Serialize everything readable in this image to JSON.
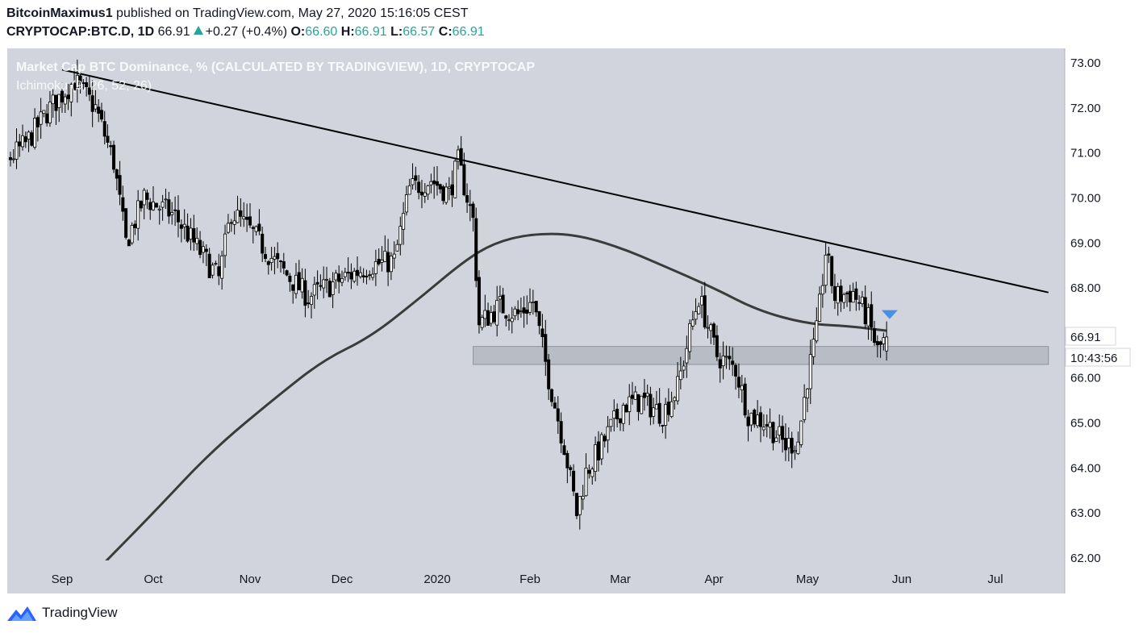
{
  "header": {
    "author": "BitcoinMaximus1",
    "published": "published on TradingView.com, May 27, 2020 15:16:05 CEST",
    "symbol": "CRYPTOCAP:BTC.D, 1D",
    "last": "66.91",
    "change": "+0.27 (+0.4%)",
    "o_label": "O:",
    "o_value": "66.60",
    "h_label": "H:",
    "h_value": "66.91",
    "l_label": "L:",
    "l_value": "66.57",
    "c_label": "C:",
    "c_value": "66.91"
  },
  "chart_title": "Market Cap BTC Dominance, % (CALCULATED BY TRADINGVIEW), 1D, CRYPTOCAP",
  "indicator_label": "Ichimoku (9, 26, 52, 26)",
  "price_tag": "66.91",
  "countdown_tag": "10:43:56",
  "footer": {
    "brand": "TradingView"
  },
  "colors": {
    "background": "#d1d4dc",
    "candle": "#000000",
    "trendline": "#000000",
    "ichimoku": "#3b3b3b",
    "support_zone": "#b2b5be",
    "arrow": "#4a90e2",
    "up": "#26a69a"
  },
  "icons": [
    "tradingview-logo-icon",
    "triangle-up-icon",
    "arrow-down-icon"
  ],
  "chart_data": {
    "type": "candlestick",
    "ylim": [
      62,
      73
    ],
    "y_ticks": [
      "62.00",
      "63.00",
      "64.00",
      "65.00",
      "66.00",
      "67.00",
      "68.00",
      "69.00",
      "70.00",
      "71.00",
      "72.00",
      "73.00"
    ],
    "x_ticks": [
      "Sep",
      "Oct",
      "Nov",
      "Dec",
      "2020",
      "Feb",
      "Mar",
      "Apr",
      "May",
      "Jun",
      "Jul"
    ],
    "x_tick_dates": [
      "2019-09-01",
      "2019-10-01",
      "2019-11-01",
      "2019-12-01",
      "2020-01-01",
      "2020-02-01",
      "2020-03-01",
      "2020-04-01",
      "2020-05-01",
      "2020-06-01",
      "2020-07-01"
    ],
    "close_path": [
      [
        "2019-08-01",
        70.5
      ],
      [
        "2019-08-10",
        70.6
      ],
      [
        "2019-08-20",
        71.2
      ],
      [
        "2019-08-28",
        72.0
      ],
      [
        "2019-09-05",
        72.6
      ],
      [
        "2019-09-12",
        72.0
      ],
      [
        "2019-09-18",
        70.8
      ],
      [
        "2019-09-22",
        69.0
      ],
      [
        "2019-09-28",
        70.0
      ],
      [
        "2019-10-08",
        69.6
      ],
      [
        "2019-10-15",
        68.9
      ],
      [
        "2019-10-22",
        68.2
      ],
      [
        "2019-10-26",
        69.7
      ],
      [
        "2019-11-02",
        69.2
      ],
      [
        "2019-11-10",
        68.5
      ],
      [
        "2019-11-20",
        67.8
      ],
      [
        "2019-12-01",
        68.2
      ],
      [
        "2019-12-10",
        68.5
      ],
      [
        "2019-12-18",
        68.6
      ],
      [
        "2019-12-23",
        70.2
      ],
      [
        "2019-12-30",
        70.4
      ],
      [
        "2020-01-05",
        70.1
      ],
      [
        "2020-01-08",
        70.8
      ],
      [
        "2020-01-13",
        69.5
      ],
      [
        "2020-01-15",
        67.2
      ],
      [
        "2020-01-22",
        67.6
      ],
      [
        "2020-01-28",
        67.4
      ],
      [
        "2020-02-02",
        67.7
      ],
      [
        "2020-02-07",
        66.0
      ],
      [
        "2020-02-12",
        64.5
      ],
      [
        "2020-02-16",
        63.0
      ],
      [
        "2020-02-19",
        63.9
      ],
      [
        "2020-02-24",
        64.5
      ],
      [
        "2020-03-02",
        65.4
      ],
      [
        "2020-03-08",
        65.5
      ],
      [
        "2020-03-15",
        65.2
      ],
      [
        "2020-03-20",
        65.8
      ],
      [
        "2020-03-24",
        67.0
      ],
      [
        "2020-03-27",
        67.8
      ],
      [
        "2020-04-02",
        66.5
      ],
      [
        "2020-04-08",
        66.2
      ],
      [
        "2020-04-12",
        65.2
      ],
      [
        "2020-04-18",
        65.0
      ],
      [
        "2020-04-24",
        64.5
      ],
      [
        "2020-04-28",
        64.6
      ],
      [
        "2020-05-01",
        66.0
      ],
      [
        "2020-05-04",
        67.0
      ],
      [
        "2020-05-07",
        68.8
      ],
      [
        "2020-05-10",
        67.8
      ],
      [
        "2020-05-16",
        67.9
      ],
      [
        "2020-05-21",
        67.3
      ],
      [
        "2020-05-24",
        66.6
      ],
      [
        "2020-05-27",
        66.91
      ]
    ],
    "ohlc_last": {
      "date": "2020-05-27",
      "open": 66.6,
      "high": 66.91,
      "low": 66.57,
      "close": 66.91
    },
    "ichimoku_line": [
      [
        "2019-09-15",
        61.9
      ],
      [
        "2019-10-01",
        63.0
      ],
      [
        "2019-10-20",
        64.4
      ],
      [
        "2019-11-10",
        65.6
      ],
      [
        "2019-11-25",
        66.4
      ],
      [
        "2019-12-10",
        66.9
      ],
      [
        "2019-12-25",
        67.7
      ],
      [
        "2020-01-10",
        68.6
      ],
      [
        "2020-01-20",
        69.0
      ],
      [
        "2020-02-01",
        69.2
      ],
      [
        "2020-02-15",
        69.2
      ],
      [
        "2020-03-01",
        68.9
      ],
      [
        "2020-03-15",
        68.5
      ],
      [
        "2020-04-01",
        68.0
      ],
      [
        "2020-04-15",
        67.5
      ],
      [
        "2020-05-01",
        67.2
      ],
      [
        "2020-05-15",
        67.15
      ],
      [
        "2020-05-27",
        67.05
      ]
    ],
    "trendline": [
      [
        "2019-09-01",
        72.85
      ],
      [
        "2020-07-18",
        67.9
      ]
    ],
    "support_zone": {
      "from": "2020-01-13",
      "to": "2020-07-18",
      "low": 66.3,
      "high": 66.7
    },
    "arrow_marker": {
      "date": "2020-05-28",
      "value": 67.4
    },
    "grid": false,
    "legend": "top-left"
  }
}
